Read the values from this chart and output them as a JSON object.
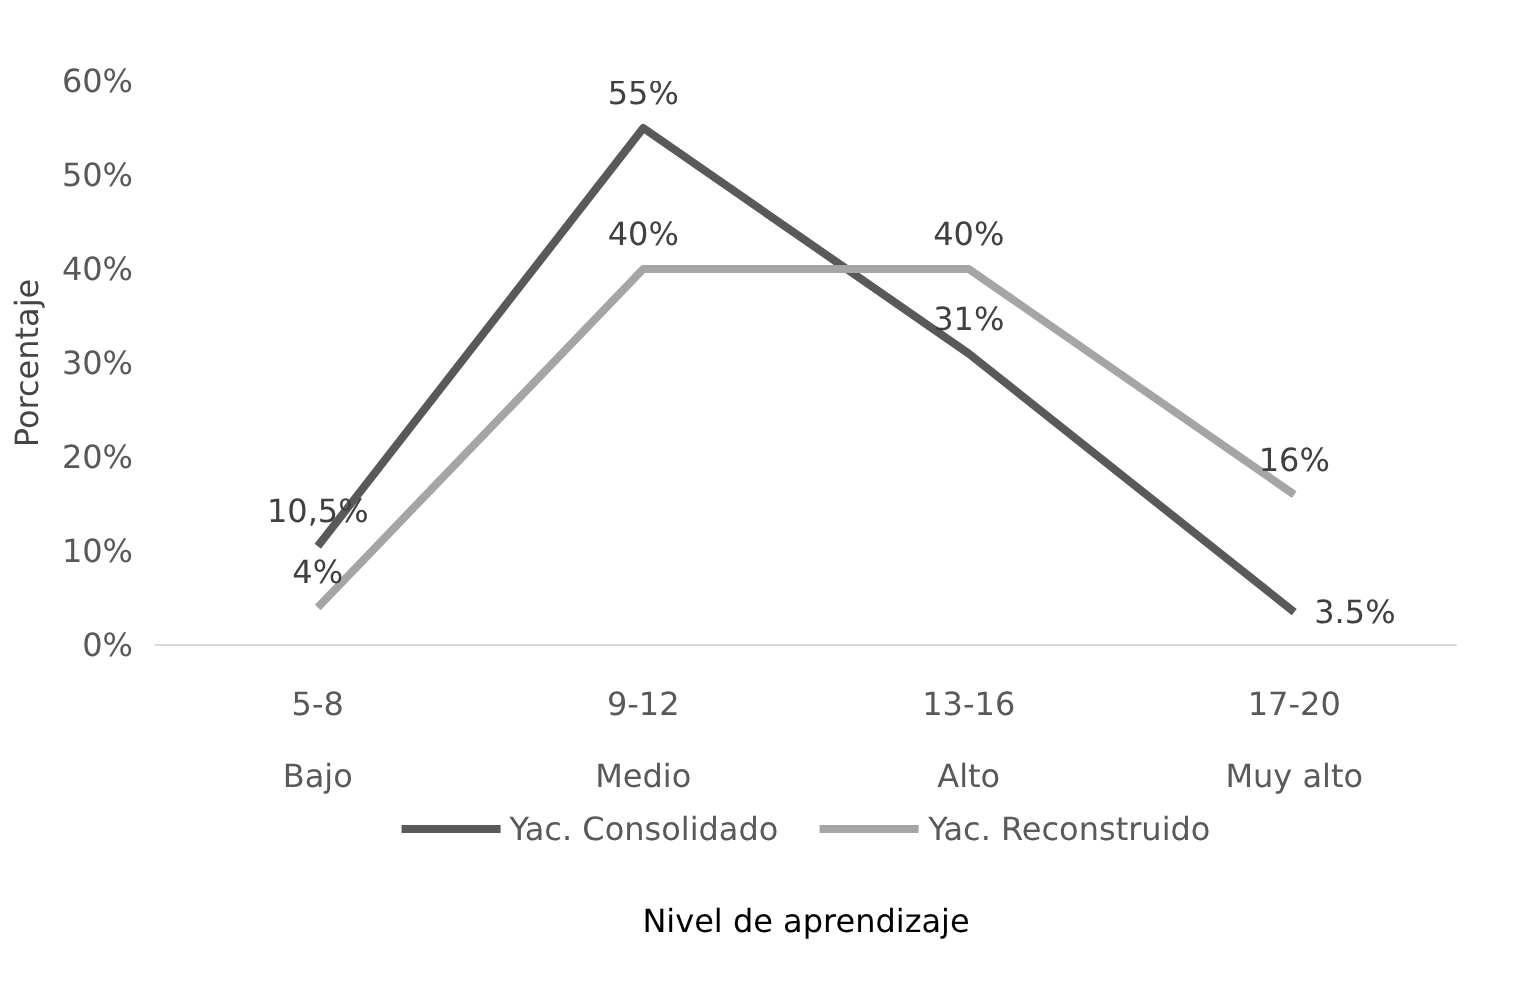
{
  "chart_data": {
    "type": "line",
    "xlabel": "Nivel de aprendizaje",
    "ylabel": "Porcentaje",
    "categories": [
      "5-8\nBajo",
      "9-12\nMedio",
      "13-16\nAlto",
      "17-20\nMuy alto"
    ],
    "series": [
      {
        "name": "Yac. Consolidado",
        "color": "#595959",
        "values": [
          10.5,
          55,
          31,
          3.5
        ],
        "value_labels": [
          "10,5%",
          "55%",
          "31%",
          "3.5%"
        ]
      },
      {
        "name": "Yac. Reconstruido",
        "color": "#a5a5a5",
        "values": [
          4,
          40,
          40,
          16
        ],
        "value_labels": [
          "4%",
          "40%",
          "40%",
          "16%"
        ]
      }
    ],
    "ylim": [
      0,
      60
    ],
    "yticks": [
      {
        "value": 0,
        "label": "0%"
      },
      {
        "value": 10,
        "label": "10%"
      },
      {
        "value": 20,
        "label": "20%"
      },
      {
        "value": 30,
        "label": "30%"
      },
      {
        "value": 40,
        "label": "40%"
      },
      {
        "value": 50,
        "label": "50%"
      },
      {
        "value": 60,
        "label": "60%"
      }
    ],
    "grid": false,
    "legend": "bottom",
    "marker": "none",
    "line_style": "solid"
  }
}
